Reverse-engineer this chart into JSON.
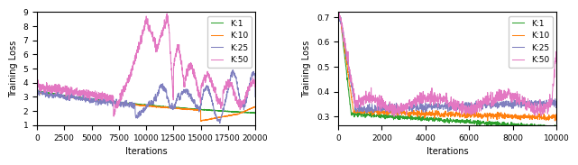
{
  "chart1": {
    "xlabel": "Iterations",
    "ylabel": "Training Loss",
    "xlim": [
      0,
      20000
    ],
    "ylim": [
      1,
      9
    ],
    "yticks": [
      1,
      2,
      3,
      4,
      5,
      6,
      7,
      8,
      9
    ],
    "xticks": [
      0,
      2500,
      5000,
      7500,
      10000,
      12500,
      15000,
      17500,
      20000
    ],
    "colors": {
      "K1": "#2ca02c",
      "K10": "#ff7f0e",
      "K25": "#7f7fbf",
      "K50": "#e377c2"
    }
  },
  "chart2": {
    "xlabel": "Iterations",
    "ylabel": "Training Loss",
    "xlim": [
      0,
      10000
    ],
    "ylim": [
      0.265,
      0.72
    ],
    "yticks": [
      0.3,
      0.4,
      0.5,
      0.6,
      0.7
    ],
    "xticks": [
      0,
      2000,
      4000,
      6000,
      8000,
      10000
    ],
    "colors": {
      "K1": "#2ca02c",
      "K10": "#ff7f0e",
      "K25": "#7f7fbf",
      "K50": "#e377c2"
    }
  }
}
